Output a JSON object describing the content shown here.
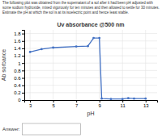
{
  "chart_data": {
    "type": "line",
    "title": "Uv absorbance @500 nm",
    "subtitle": [
      "The following plot was obtained from the supernatant of a sol after it had been pH adjusted with",
      "some sodium hydroxide, mixed vigorously for ten minutes and then allowed to settle for 30 minutes.",
      "Estimate the pH at which the sol is at its isoelectric point and hence least stable."
    ],
    "annotations": [
      "Answer:"
    ],
    "xlabel": "pH",
    "ylabel": "Ab sorbance",
    "x": [
      3,
      4,
      5,
      7,
      8,
      8.5,
      9,
      9.2,
      10,
      11,
      11.5,
      12,
      13
    ],
    "values": [
      1.3,
      1.38,
      1.42,
      1.45,
      1.46,
      1.68,
      1.68,
      0.04,
      0.03,
      0.03,
      0.05,
      0.04,
      0.04
    ],
    "color": "#4472c4",
    "marker": "circle",
    "xlim": [
      2.5,
      14
    ],
    "ylim": [
      0,
      1.9
    ],
    "xticks": [
      3,
      5,
      7,
      9,
      11,
      13
    ],
    "yticks": [
      0,
      0.2,
      0.4,
      0.6,
      0.8,
      1,
      1.2,
      1.4,
      1.6,
      1.8
    ],
    "grid": true
  }
}
